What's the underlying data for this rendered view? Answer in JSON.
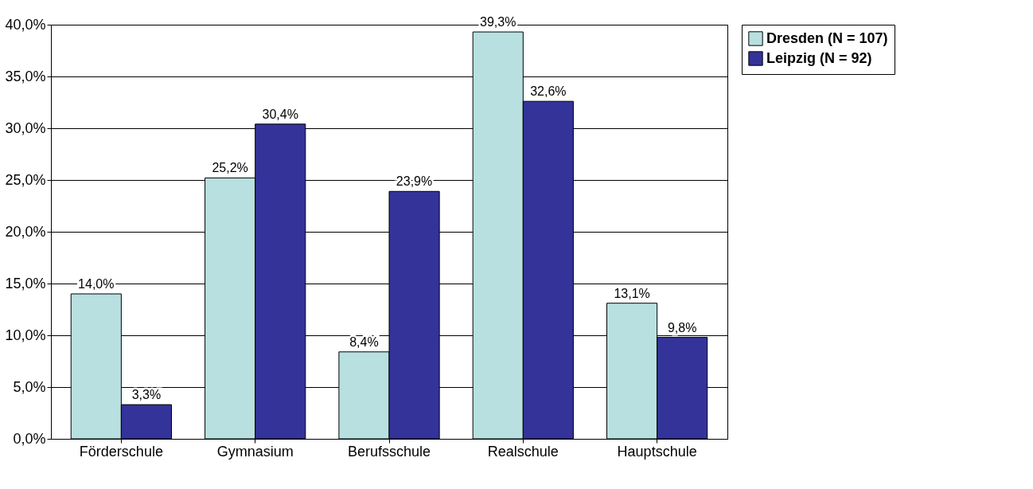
{
  "chart_data": {
    "type": "bar",
    "categories": [
      "Förderschule",
      "Gymnasium",
      "Berufsschule",
      "Realschule",
      "Hauptschule"
    ],
    "series": [
      {
        "name": "Dresden (N = 107)",
        "color": "#b8e0e0",
        "values": [
          14.0,
          25.2,
          8.4,
          39.3,
          13.1
        ],
        "value_labels": [
          "14,0%",
          "25,2%",
          "8,4%",
          "39,3%",
          "13,1%"
        ]
      },
      {
        "name": "Leipzig (N = 92)",
        "color": "#333399",
        "values": [
          3.3,
          30.4,
          23.9,
          32.6,
          9.8
        ],
        "value_labels": [
          "3,3%",
          "30,4%",
          "23,9%",
          "32,6%",
          "9,8%"
        ]
      }
    ],
    "ylim": [
      0,
      40
    ],
    "yticks": [
      {
        "value": 0,
        "label": "0,0%"
      },
      {
        "value": 5,
        "label": "5,0%"
      },
      {
        "value": 10,
        "label": "10,0%"
      },
      {
        "value": 15,
        "label": "15,0%"
      },
      {
        "value": 20,
        "label": "20,0%"
      },
      {
        "value": 25,
        "label": "25,0%"
      },
      {
        "value": 30,
        "label": "30,0%"
      },
      {
        "value": 35,
        "label": "35,0%"
      },
      {
        "value": 40,
        "label": "40,0%"
      }
    ],
    "grid": "y",
    "legend": "right"
  }
}
